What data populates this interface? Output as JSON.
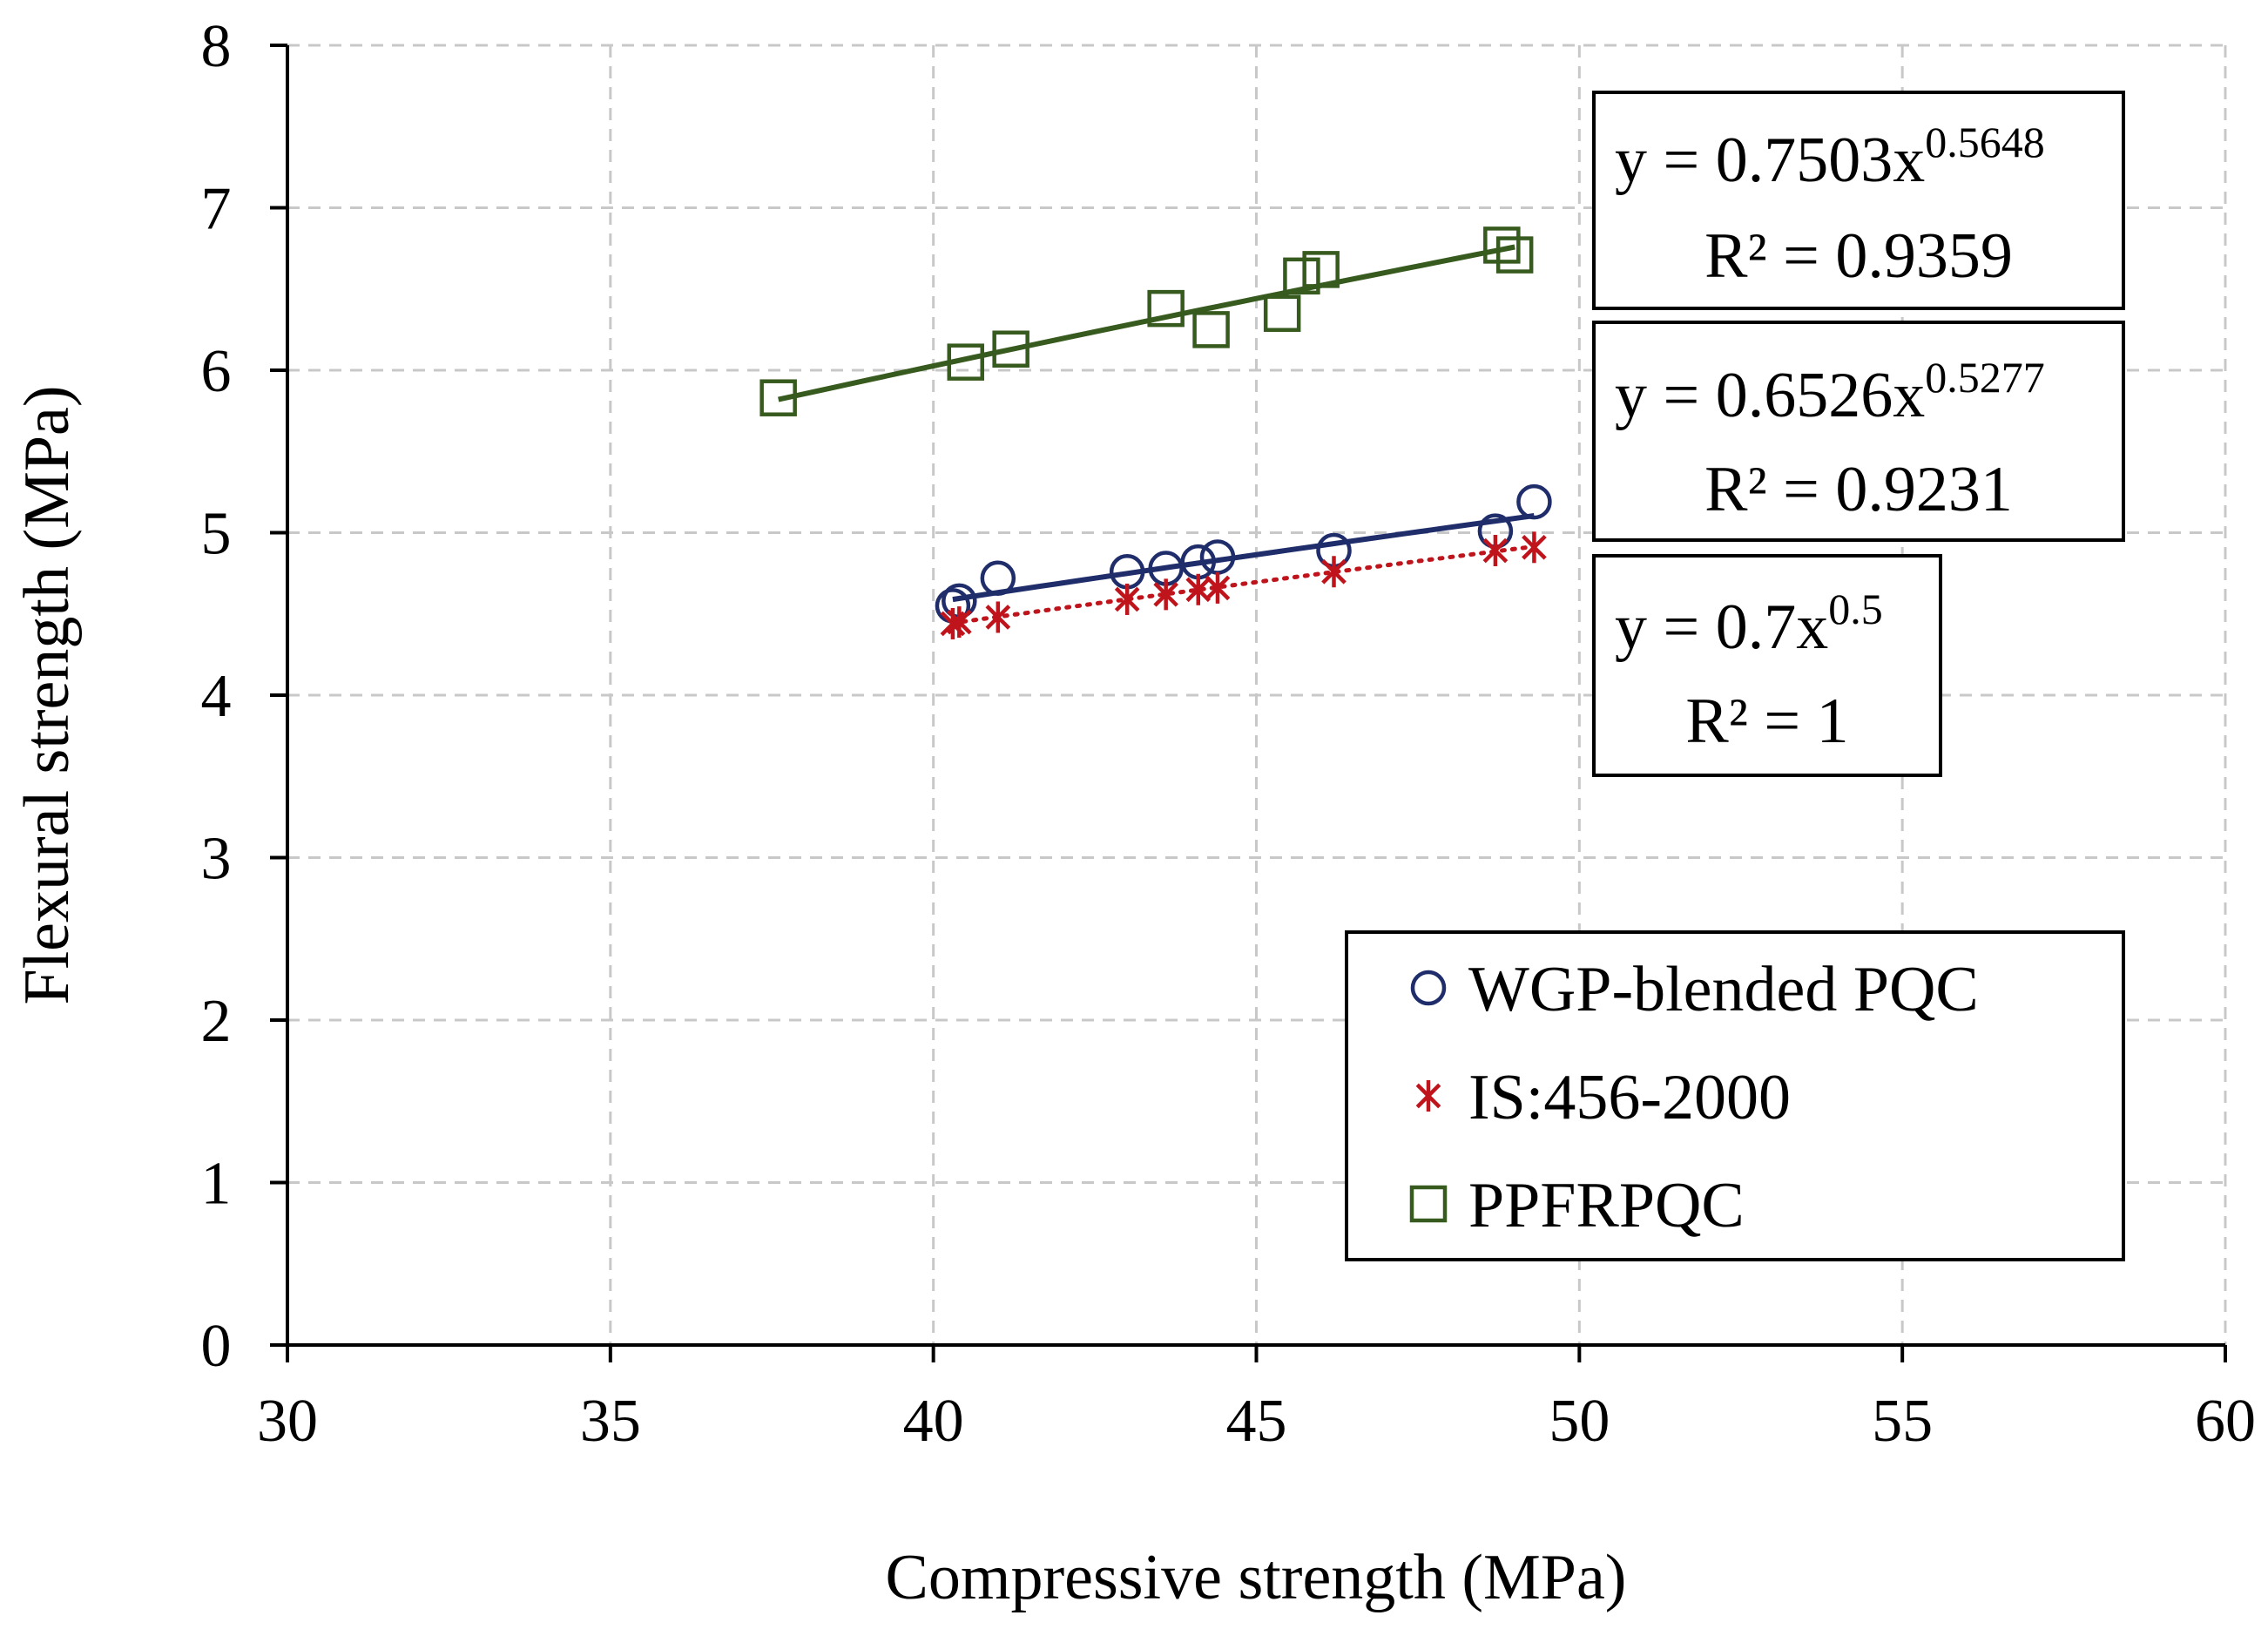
{
  "chart_data": {
    "type": "scatter",
    "xlabel": "Compressive strength (MPa)",
    "ylabel": "Flexural strength (MPa)",
    "xlim": [
      30,
      60
    ],
    "ylim": [
      0,
      8
    ],
    "x_ticks": [
      "30",
      "35",
      "40",
      "45",
      "50",
      "55",
      "60"
    ],
    "y_ticks": [
      "0",
      "1",
      "2",
      "3",
      "4",
      "5",
      "6",
      "7",
      "8"
    ],
    "grid": true,
    "legend_position": "bottom-right",
    "series": [
      {
        "name": "WGP-blended PQC",
        "marker": "circle",
        "color": "#1f2d6b",
        "x": [
          40.3,
          40.4,
          41.0,
          43.0,
          43.6,
          44.1,
          44.4,
          46.2,
          48.7,
          49.3
        ],
        "y": [
          4.55,
          4.58,
          4.72,
          4.76,
          4.78,
          4.82,
          4.85,
          4.89,
          5.01,
          5.19
        ],
        "trendline": {
          "type": "power",
          "coef": 0.6526,
          "exp": 0.5277,
          "x_range": [
            40.3,
            49.3
          ],
          "style": "solid"
        }
      },
      {
        "name": "IS:456-2000",
        "marker": "star",
        "color": "#c0141c",
        "x": [
          40.3,
          40.4,
          41.0,
          43.0,
          43.6,
          44.1,
          44.4,
          46.2,
          48.7,
          49.3
        ],
        "y": [
          4.44,
          4.45,
          4.48,
          4.59,
          4.62,
          4.65,
          4.66,
          4.76,
          4.89,
          4.91
        ],
        "trendline": {
          "type": "power",
          "coef": 0.7,
          "exp": 0.5,
          "x_range": [
            40.3,
            49.3
          ],
          "style": "dotted"
        }
      },
      {
        "name": "PPFRPQC",
        "marker": "square",
        "color": "#375a1e",
        "x": [
          37.6,
          40.5,
          41.2,
          43.6,
          44.3,
          45.4,
          45.7,
          46.0,
          48.8,
          49.0
        ],
        "y": [
          5.83,
          6.05,
          6.13,
          6.38,
          6.25,
          6.35,
          6.58,
          6.62,
          6.77,
          6.71
        ],
        "trendline": {
          "type": "power",
          "coef": 0.7503,
          "exp": 0.5648,
          "x_range": [
            37.6,
            49.0
          ],
          "style": "solid"
        }
      }
    ],
    "equations": [
      {
        "base": "y = 0.7503x",
        "exponent": "0.5648",
        "r2": "R² = 0.9359"
      },
      {
        "base": "y = 0.6526x",
        "exponent": "0.5277",
        "r2": "R² = 0.9231"
      },
      {
        "base": "y = 0.7x",
        "exponent": "0.5",
        "r2": "R² = 1"
      }
    ]
  }
}
